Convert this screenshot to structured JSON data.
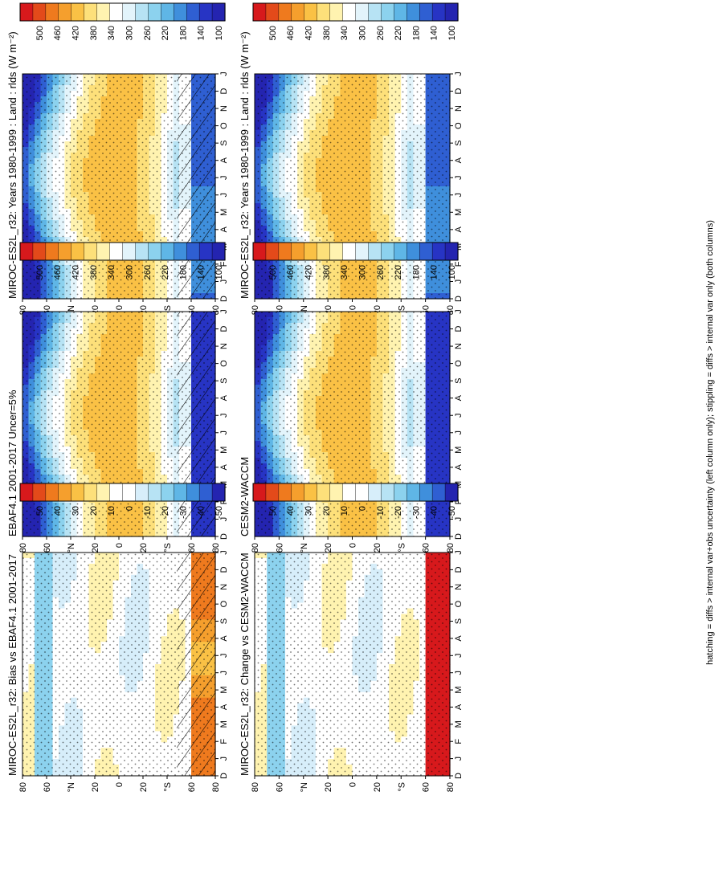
{
  "chart_data": {
    "type": "heatmap",
    "figure_caption": "hatching = diffs > internal var+obs uncertainty (left column only); stippling = diffs > internal var only (both columns)",
    "x_ticks": [
      "D",
      "J",
      "F",
      "M",
      "A",
      "M",
      "J",
      "J",
      "A",
      "S",
      "O",
      "N",
      "D",
      "J"
    ],
    "y_ticks": [
      "80",
      "60",
      "°N",
      "20",
      "0",
      "20",
      "°S",
      "60",
      "80"
    ],
    "panels": [
      {
        "id": "p1",
        "column": "left",
        "row": 1,
        "title": "MIROC-ES2L_r32: Years 1980-1999 : Land : rlds (W m⁻²)",
        "kind": "abs",
        "hatch": true,
        "colorbar_labels": [
          "500",
          "460",
          "420",
          "380",
          "340",
          "300",
          "260",
          "220",
          "180",
          "140",
          "100"
        ]
      },
      {
        "id": "p2",
        "column": "left",
        "row": 2,
        "title": "EBAF4.1 2001-2017 Uncer=5%",
        "kind": "abs",
        "hatch": true,
        "colorbar_labels": [
          "500",
          "460",
          "420",
          "380",
          "340",
          "300",
          "260",
          "220",
          "180",
          "140",
          "100"
        ]
      },
      {
        "id": "p3",
        "column": "left",
        "row": 3,
        "title": "MIROC-ES2L_r32: Bias vs EBAF4.1 2001-2017",
        "kind": "diff",
        "hatch": true,
        "colorbar_labels": [
          "50",
          "40",
          "30",
          "20",
          "10",
          "0",
          "-10",
          "-20",
          "-30",
          "-40",
          "-50"
        ]
      },
      {
        "id": "p4",
        "column": "right",
        "row": 1,
        "title": "MIROC-ES2L_r32: Years 1980-1999 : Land : rlds (W m⁻²)",
        "kind": "abs",
        "hatch": false,
        "colorbar_labels": [
          "500",
          "460",
          "420",
          "380",
          "340",
          "300",
          "260",
          "220",
          "180",
          "140",
          "100"
        ]
      },
      {
        "id": "p5",
        "column": "right",
        "row": 2,
        "title": "CESM2-WACCM",
        "kind": "abs",
        "hatch": false,
        "colorbar_labels": [
          "500",
          "460",
          "420",
          "380",
          "340",
          "300",
          "260",
          "220",
          "180",
          "140",
          "100"
        ]
      },
      {
        "id": "p6",
        "column": "right",
        "row": 3,
        "title": "MIROC-ES2L_r32: Change vs CESM2-WACCM",
        "kind": "diff",
        "hatch": false,
        "colorbar_labels": [
          "50",
          "40",
          "30",
          "20",
          "10",
          "0",
          "-10",
          "-20",
          "-30",
          "-40",
          "-50"
        ]
      }
    ],
    "colors": {
      "abs": [
        "#d7191c",
        "#e34a1a",
        "#ef7a1e",
        "#f59f2d",
        "#fac145",
        "#fde07a",
        "#fff3b0",
        "#ffffff",
        "#e3f4fb",
        "#b7e3f4",
        "#8cd2ee",
        "#5fb6e6",
        "#3f8fdc",
        "#2f5fd2",
        "#2734c4",
        "#2424b0"
      ],
      "diff": [
        "#d7191c",
        "#e34a1a",
        "#ef7a1e",
        "#f59f2d",
        "#fac145",
        "#fde07a",
        "#fff3b0",
        "#ffffff",
        "#ffffff",
        "#d7eefa",
        "#b7e3f4",
        "#8cd2ee",
        "#5fb6e6",
        "#3f8fdc",
        "#2f5fd2",
        "#2424b0"
      ]
    }
  }
}
